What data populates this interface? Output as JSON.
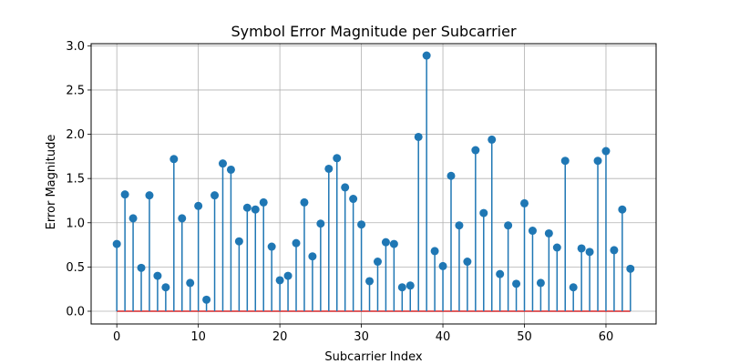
{
  "chart_data": {
    "type": "stem",
    "title": "Symbol Error Magnitude per Subcarrier",
    "xlabel": "Subcarrier Index",
    "ylabel": "Error Magnitude",
    "xlim": [
      -3.15,
      66.15
    ],
    "ylim": [
      -0.144,
      3.024
    ],
    "xticks": [
      0,
      10,
      20,
      30,
      40,
      50,
      60
    ],
    "yticks": [
      0.0,
      0.5,
      1.0,
      1.5,
      2.0,
      2.5,
      3.0
    ],
    "xtick_labels": [
      "0",
      "10",
      "20",
      "30",
      "40",
      "50",
      "60"
    ],
    "ytick_labels": [
      "0.0",
      "0.5",
      "1.0",
      "1.5",
      "2.0",
      "2.5",
      "3.0"
    ],
    "grid": true,
    "marker_color": "#1f77b4",
    "baseline_color": "#d62728",
    "x": [
      0,
      1,
      2,
      3,
      4,
      5,
      6,
      7,
      8,
      9,
      10,
      11,
      12,
      13,
      14,
      15,
      16,
      17,
      18,
      19,
      20,
      21,
      22,
      23,
      24,
      25,
      26,
      27,
      28,
      29,
      30,
      31,
      32,
      33,
      34,
      35,
      36,
      37,
      38,
      39,
      40,
      41,
      42,
      43,
      44,
      45,
      46,
      47,
      48,
      49,
      50,
      51,
      52,
      53,
      54,
      55,
      56,
      57,
      58,
      59,
      60,
      61,
      62,
      63
    ],
    "values": [
      0.76,
      1.32,
      1.05,
      0.49,
      1.31,
      0.4,
      0.27,
      1.72,
      1.05,
      0.32,
      1.19,
      0.13,
      1.31,
      1.67,
      1.6,
      0.79,
      1.17,
      1.15,
      1.23,
      0.73,
      0.35,
      0.4,
      0.77,
      1.23,
      0.62,
      0.99,
      1.61,
      1.73,
      1.4,
      1.27,
      0.98,
      0.34,
      0.56,
      0.78,
      0.76,
      0.27,
      0.29,
      1.97,
      2.89,
      0.68,
      0.51,
      1.53,
      0.97,
      0.56,
      1.82,
      1.11,
      1.94,
      0.42,
      0.97,
      0.31,
      1.22,
      0.91,
      0.32,
      0.88,
      0.72,
      1.7,
      0.27,
      0.71,
      0.67,
      1.7,
      1.81,
      0.69,
      1.15,
      0.48
    ]
  }
}
